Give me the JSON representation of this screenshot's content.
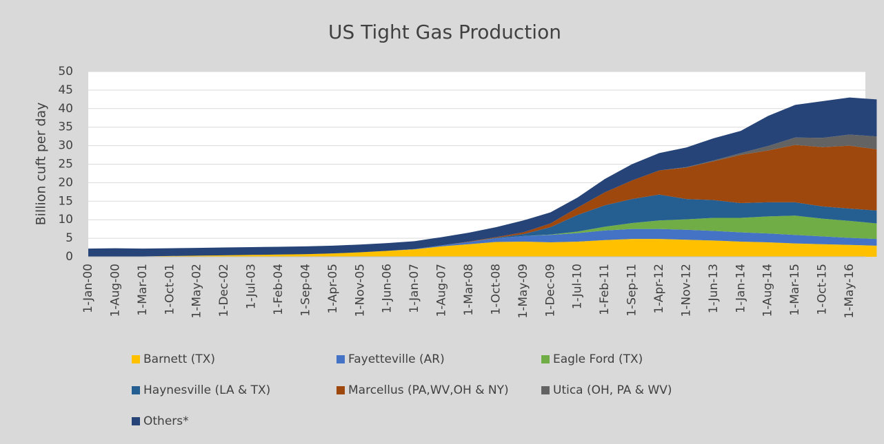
{
  "chart_data": {
    "type": "stacked-area",
    "title": "US Tight Gas Production",
    "ylabel": "Billion cuft per day",
    "categories": [
      "1-Jan-00",
      "1-Aug-00",
      "1-Mar-01",
      "1-Oct-01",
      "1-May-02",
      "1-Dec-02",
      "1-Jul-03",
      "1-Feb-04",
      "1-Sep-04",
      "1-Apr-05",
      "1-Nov-05",
      "1-Jun-06",
      "1-Jan-07",
      "1-Aug-07",
      "1-Mar-08",
      "1-Oct-08",
      "1-May-09",
      "1-Dec-09",
      "1-Jul-10",
      "1-Feb-11",
      "1-Sep-11",
      "1-Apr-12",
      "1-Nov-12",
      "1-Jun-13",
      "1-Jan-14",
      "1-Aug-14",
      "1-Mar-15",
      "1-Oct-15",
      "1-May-16",
      null
    ],
    "series": [
      {
        "name": "Barnett (TX)",
        "color": "#ffc000",
        "values": [
          0,
          0,
          0.1,
          0.2,
          0.3,
          0.4,
          0.5,
          0.6,
          0.7,
          0.9,
          1.2,
          1.6,
          2.0,
          2.8,
          3.4,
          4.0,
          4.1,
          3.9,
          4.1,
          4.5,
          4.8,
          4.8,
          4.6,
          4.4,
          4.1,
          3.9,
          3.6,
          3.4,
          3.2,
          3.0
        ]
      },
      {
        "name": "Fayetteville (AR)",
        "color": "#4472c4",
        "values": [
          0,
          0,
          0,
          0,
          0,
          0,
          0,
          0,
          0,
          0,
          0,
          0,
          0.1,
          0.3,
          0.6,
          1.0,
          1.5,
          2.0,
          2.3,
          2.6,
          2.7,
          2.7,
          2.7,
          2.6,
          2.5,
          2.4,
          2.3,
          2.1,
          1.9,
          1.8
        ]
      },
      {
        "name": "Eagle Ford (TX)",
        "color": "#70ad47",
        "values": [
          0,
          0,
          0,
          0,
          0,
          0,
          0,
          0,
          0,
          0,
          0,
          0,
          0,
          0,
          0,
          0,
          0,
          0.1,
          0.4,
          1.0,
          1.6,
          2.3,
          2.8,
          3.5,
          3.9,
          4.6,
          5.2,
          4.8,
          4.6,
          4.2
        ]
      },
      {
        "name": "Haynesville (LA & TX)",
        "color": "#255e91",
        "values": [
          0,
          0,
          0,
          0,
          0,
          0,
          0,
          0,
          0,
          0,
          0,
          0,
          0,
          0,
          0,
          0.1,
          0.5,
          2.0,
          4.5,
          5.8,
          6.5,
          7.0,
          5.5,
          4.8,
          4.0,
          3.8,
          3.6,
          3.3,
          3.3,
          3.5
        ]
      },
      {
        "name": "Marcellus (PA,WV,OH & NY)",
        "color": "#9e480e",
        "values": [
          0,
          0,
          0,
          0,
          0,
          0,
          0,
          0,
          0,
          0,
          0,
          0,
          0,
          0,
          0.1,
          0.2,
          0.5,
          1.0,
          2.0,
          3.5,
          5.0,
          6.5,
          8.5,
          10.5,
          13,
          14,
          15.5,
          16,
          17,
          16.5
        ]
      },
      {
        "name": "Utica (OH, PA & WV)",
        "color": "#636363",
        "values": [
          0,
          0,
          0,
          0,
          0,
          0,
          0,
          0,
          0,
          0,
          0,
          0,
          0,
          0,
          0,
          0,
          0,
          0,
          0,
          0,
          0,
          0,
          0.1,
          0.2,
          0.5,
          1.2,
          2.0,
          2.5,
          3.0,
          3.5
        ]
      },
      {
        "name": "Others*",
        "color": "#264478",
        "values": [
          2.2,
          2.3,
          2.1,
          2.1,
          2.1,
          2.1,
          2.1,
          2.1,
          2.1,
          2.1,
          2.1,
          2.1,
          2.1,
          2.2,
          2.4,
          2.7,
          3.2,
          3.0,
          2.7,
          3.6,
          4.4,
          4.7,
          5.3,
          6.0,
          6.0,
          8.1,
          8.8,
          9.9,
          10.0,
          10.0
        ]
      }
    ],
    "ylim": [
      0,
      50
    ],
    "yticks": [
      0,
      5,
      10,
      15,
      20,
      25,
      30,
      35,
      40,
      45,
      50
    ],
    "grid": true
  }
}
